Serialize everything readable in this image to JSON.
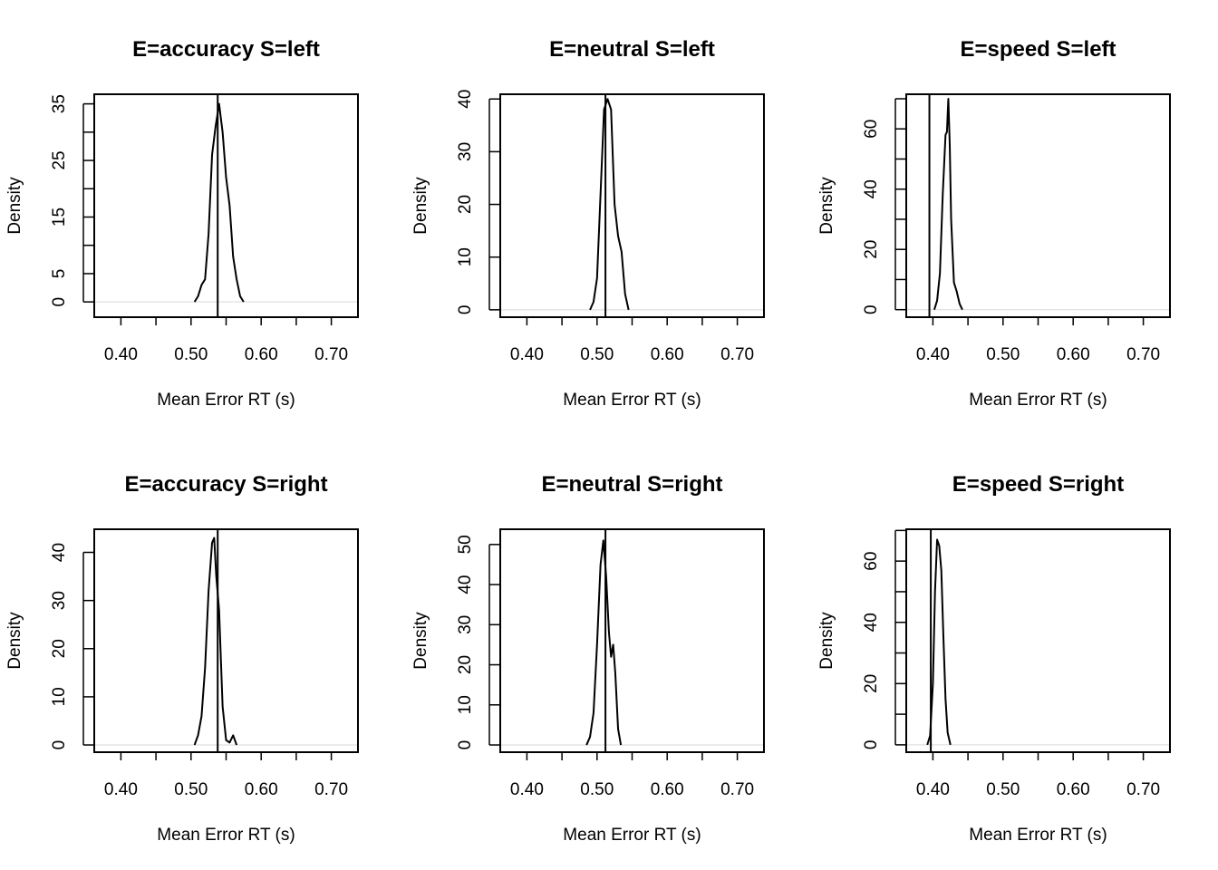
{
  "chart_data": [
    {
      "type": "line",
      "title": "E=accuracy S=left",
      "xlabel": "Mean Error RT (s)",
      "ylabel": "Density",
      "xlim": [
        0.362,
        0.738
      ],
      "ylim": [
        -2.7,
        36.7
      ],
      "x_ticks": [
        0.4,
        0.45,
        0.5,
        0.55,
        0.6,
        0.65,
        0.7
      ],
      "x_tick_labels": [
        "0.40",
        "",
        "0.50",
        "",
        "0.60",
        "",
        "0.70"
      ],
      "y_ticks": [
        0,
        5,
        10,
        15,
        20,
        25,
        30,
        35
      ],
      "y_tick_labels": [
        "0",
        "5",
        "",
        "15",
        "",
        "25",
        "",
        "35"
      ],
      "observed_x": 0.538,
      "x": [
        0.505,
        0.51,
        0.515,
        0.52,
        0.525,
        0.53,
        0.535,
        0.54,
        0.545,
        0.55,
        0.555,
        0.56,
        0.565,
        0.57,
        0.575
      ],
      "y": [
        0,
        1.0,
        3.0,
        4.0,
        12.0,
        26.0,
        31.0,
        35.0,
        30.0,
        22.0,
        17.0,
        8.0,
        4.0,
        1.0,
        0
      ]
    },
    {
      "type": "line",
      "title": "E=neutral S=left",
      "xlabel": "Mean Error RT (s)",
      "ylabel": "Density",
      "xlim": [
        0.362,
        0.738
      ],
      "ylim": [
        -1.4,
        40.9
      ],
      "x_ticks": [
        0.4,
        0.45,
        0.5,
        0.55,
        0.6,
        0.65,
        0.7
      ],
      "x_tick_labels": [
        "0.40",
        "",
        "0.50",
        "",
        "0.60",
        "",
        "0.70"
      ],
      "y_ticks": [
        0,
        10,
        20,
        30,
        40
      ],
      "y_tick_labels": [
        "0",
        "10",
        "20",
        "30",
        "40"
      ],
      "observed_x": 0.512,
      "x": [
        0.49,
        0.495,
        0.5,
        0.505,
        0.51,
        0.515,
        0.52,
        0.525,
        0.53,
        0.535,
        0.54,
        0.545
      ],
      "y": [
        0,
        1.5,
        6.0,
        22.0,
        38.0,
        40.0,
        38.0,
        20.0,
        14.0,
        11.0,
        3.0,
        0
      ]
    },
    {
      "type": "line",
      "title": "E=speed S=left",
      "xlabel": "Mean Error RT (s)",
      "ylabel": "Density",
      "xlim": [
        0.362,
        0.738
      ],
      "ylim": [
        -2.5,
        71.5
      ],
      "x_ticks": [
        0.4,
        0.45,
        0.5,
        0.55,
        0.6,
        0.65,
        0.7
      ],
      "x_tick_labels": [
        "0.40",
        "",
        "0.50",
        "",
        "0.60",
        "",
        "0.70"
      ],
      "y_ticks": [
        0,
        10,
        20,
        30,
        40,
        50,
        60,
        70
      ],
      "y_tick_labels": [
        "0",
        "",
        "20",
        "",
        "40",
        "",
        "60",
        ""
      ],
      "observed_x": 0.395,
      "x": [
        0.402,
        0.406,
        0.41,
        0.414,
        0.418,
        0.42,
        0.422,
        0.424,
        0.426,
        0.43,
        0.434,
        0.438,
        0.442
      ],
      "y": [
        0,
        3.0,
        12.0,
        38.0,
        58.0,
        59.0,
        70.0,
        55.0,
        30.0,
        9.0,
        6.0,
        2.0,
        0
      ]
    },
    {
      "type": "line",
      "title": "E=accuracy S=right",
      "xlabel": "Mean Error RT (s)",
      "ylabel": "Density",
      "xlim": [
        0.362,
        0.738
      ],
      "ylim": [
        -1.5,
        44.8
      ],
      "x_ticks": [
        0.4,
        0.45,
        0.5,
        0.55,
        0.6,
        0.65,
        0.7
      ],
      "x_tick_labels": [
        "0.40",
        "",
        "0.50",
        "",
        "0.60",
        "",
        "0.70"
      ],
      "y_ticks": [
        0,
        10,
        20,
        30,
        40
      ],
      "y_tick_labels": [
        "0",
        "10",
        "20",
        "30",
        "40"
      ],
      "observed_x": 0.538,
      "x": [
        0.505,
        0.51,
        0.515,
        0.52,
        0.525,
        0.53,
        0.533,
        0.536,
        0.54,
        0.545,
        0.55,
        0.555,
        0.56,
        0.565
      ],
      "y": [
        0,
        2.0,
        6.0,
        16.0,
        32.0,
        42.0,
        43.0,
        35.0,
        28.0,
        8.0,
        1.0,
        0.5,
        2.0,
        0
      ]
    },
    {
      "type": "line",
      "title": "E=neutral S=right",
      "xlabel": "Mean Error RT (s)",
      "ylabel": "Density",
      "xlim": [
        0.362,
        0.738
      ],
      "ylim": [
        -1.8,
        53.8
      ],
      "x_ticks": [
        0.4,
        0.45,
        0.5,
        0.55,
        0.6,
        0.65,
        0.7
      ],
      "x_tick_labels": [
        "0.40",
        "",
        "0.50",
        "",
        "0.60",
        "",
        "0.70"
      ],
      "y_ticks": [
        0,
        10,
        20,
        30,
        40,
        50
      ],
      "y_tick_labels": [
        "0",
        "10",
        "20",
        "30",
        "40",
        "50"
      ],
      "observed_x": 0.512,
      "x": [
        0.485,
        0.49,
        0.495,
        0.5,
        0.505,
        0.509,
        0.513,
        0.517,
        0.52,
        0.523,
        0.526,
        0.53,
        0.534
      ],
      "y": [
        0,
        2.0,
        8.0,
        25.0,
        45.0,
        51.0,
        42.0,
        28.0,
        22.0,
        25.0,
        18.0,
        4.0,
        0
      ]
    },
    {
      "type": "line",
      "title": "E=speed S=right",
      "xlabel": "Mean Error RT (s)",
      "ylabel": "Density",
      "xlim": [
        0.362,
        0.738
      ],
      "ylim": [
        -2.4,
        70.4
      ],
      "x_ticks": [
        0.4,
        0.45,
        0.5,
        0.55,
        0.6,
        0.65,
        0.7
      ],
      "x_tick_labels": [
        "0.40",
        "",
        "0.50",
        "",
        "0.60",
        "",
        "0.70"
      ],
      "y_ticks": [
        0,
        10,
        20,
        30,
        40,
        50,
        60,
        70
      ],
      "y_tick_labels": [
        "0",
        "",
        "20",
        "",
        "40",
        "",
        "60",
        ""
      ],
      "observed_x": 0.397,
      "x": [
        0.392,
        0.396,
        0.4,
        0.403,
        0.406,
        0.409,
        0.412,
        0.415,
        0.418,
        0.421,
        0.425
      ],
      "y": [
        0,
        3.0,
        20.0,
        50.0,
        67.0,
        65.0,
        57.0,
        35.0,
        15.0,
        4.0,
        0
      ]
    }
  ]
}
